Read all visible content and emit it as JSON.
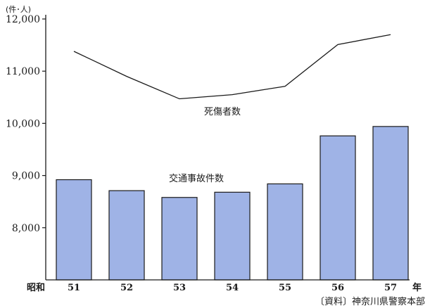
{
  "chart_data": {
    "type": "bar",
    "unit_label": "(件･人)",
    "x_prefix": "昭和",
    "x_suffix": "年",
    "categories": [
      "51",
      "52",
      "53",
      "54",
      "55",
      "56",
      "57"
    ],
    "ylim": [
      7000,
      12000
    ],
    "yticks": [
      8000,
      9000,
      10000,
      11000,
      12000
    ],
    "ytick_labels": [
      "8,000",
      "9,000",
      "10,000",
      "11,000",
      "12,000"
    ],
    "grid": false,
    "series": [
      {
        "name": "交通事故件数",
        "type": "bar",
        "color": "#9fb3e6",
        "values": [
          8920,
          8710,
          8580,
          8680,
          8840,
          9760,
          9940
        ]
      },
      {
        "name": "死傷者数",
        "type": "line",
        "color": "#1a1a1a",
        "values": [
          11380,
          10900,
          10470,
          10550,
          10710,
          11510,
          11700
        ]
      }
    ],
    "source": "〔資料〕神奈川県警察本部"
  }
}
